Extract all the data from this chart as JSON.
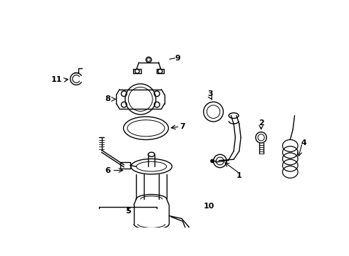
{
  "bg_color": "#ffffff",
  "line_color": "#000000",
  "figsize": [
    4.9,
    3.6
  ],
  "dpi": 100
}
